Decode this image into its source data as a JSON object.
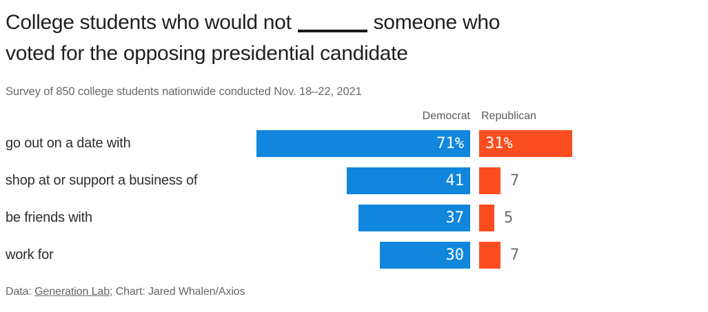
{
  "title": {
    "before_blank": "College students who would not",
    "after_blank": "someone who",
    "line2": "voted for the opposing presidential candidate"
  },
  "subtitle": "Survey of 850 college students nationwide conducted Nov. 18–22, 2021",
  "footer": {
    "prefix": "Data: ",
    "link": "Generation Lab",
    "suffix": "; Chart: Jared Whalen/Axios"
  },
  "colors": {
    "democrat": "#1186dd",
    "republican": "#fc4d20",
    "title_text": "#1f1f1f",
    "muted_text": "#696969"
  },
  "chart_data": {
    "type": "bar",
    "orientation": "horizontal",
    "title": "College students who would not ____ someone who voted for the opposing presidential candidate",
    "subtitle": "Survey of 850 college students nationwide conducted Nov. 18–22, 2021",
    "categories": [
      "go out on a date with",
      "shop at or support a business of",
      "be friends with",
      "work for"
    ],
    "series": [
      {
        "name": "Democrat",
        "color": "#1186dd",
        "values": [
          71,
          41,
          37,
          30
        ],
        "labels": [
          "71%",
          "41",
          "37",
          "30"
        ]
      },
      {
        "name": "Republican",
        "color": "#fc4d20",
        "values": [
          31,
          7,
          5,
          7
        ],
        "labels": [
          "31%",
          "7",
          "5",
          "7"
        ]
      }
    ],
    "value_unit": "percent",
    "axes": "none",
    "legend_position": "top-as-column-headers"
  }
}
